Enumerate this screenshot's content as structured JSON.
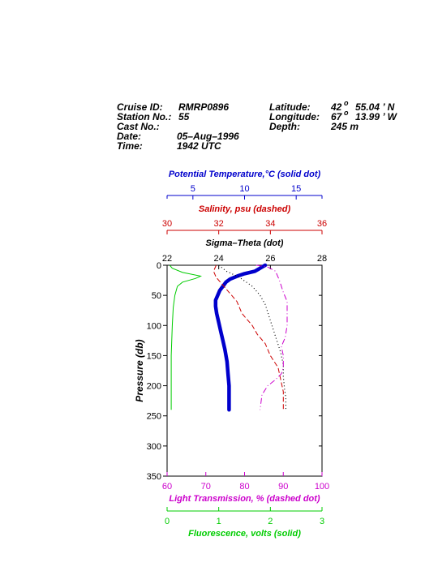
{
  "header": {
    "cruise_label": "Cruise ID:",
    "cruise_value": "RMRP0896",
    "station_label": "Station No.:",
    "station_value": "55",
    "cast_label": "Cast No.:",
    "cast_value": "",
    "date_label": "Date:",
    "date_value": "05–Aug–1996",
    "time_label": "Time:",
    "time_value": "1942 UTC",
    "lat_label": "Latitude:",
    "lat_deg": "42",
    "lat_min": "55.04 ’ N",
    "lon_label": "Longitude:",
    "lon_deg": "67",
    "lon_min": "13.99 ’ W",
    "depth_label": "Depth:",
    "depth_value": "245 m",
    "degree_mark": "o"
  },
  "colors": {
    "temperature": "#0000cc",
    "salinity": "#cc0000",
    "sigma": "#000000",
    "transmission": "#cc00cc",
    "fluorescence": "#00cc00"
  },
  "chart_data": {
    "type": "line",
    "y_axis": {
      "label": "Pressure (db)",
      "range": [
        0,
        350
      ],
      "reversed": true,
      "ticks": [
        "0",
        "50",
        "100",
        "150",
        "200",
        "250",
        "300",
        "350"
      ]
    },
    "axes": [
      {
        "id": "temperature",
        "label": "Potential Temperature,°C (solid dot)",
        "range": [
          2.5,
          17.5
        ],
        "ticks": [
          5,
          10,
          15
        ],
        "tick_labels": [
          "5",
          "10",
          "15"
        ],
        "position": "top"
      },
      {
        "id": "salinity",
        "label": "Salinity, psu  (dashed)",
        "range": [
          30,
          36
        ],
        "ticks": [
          30,
          32,
          34,
          36
        ],
        "tick_labels": [
          "30",
          "32",
          "34",
          "36"
        ],
        "position": "top"
      },
      {
        "id": "sigma",
        "label": "Sigma–Theta (dot)",
        "range": [
          22,
          28
        ],
        "ticks": [
          22,
          24,
          26,
          28
        ],
        "tick_labels": [
          "22",
          "24",
          "26",
          "28"
        ],
        "position": "top"
      },
      {
        "id": "transmission",
        "label": "Light Transmission, % (dashed dot)",
        "range": [
          60,
          100
        ],
        "ticks": [
          60,
          70,
          80,
          90,
          100
        ],
        "tick_labels": [
          "60",
          "70",
          "80",
          "90",
          "100"
        ],
        "position": "bottom"
      },
      {
        "id": "fluorescence",
        "label": "Fluorescence, volts (solid)",
        "range": [
          0,
          3
        ],
        "ticks": [
          0,
          1,
          2,
          3
        ],
        "tick_labels": [
          "0",
          "1",
          "2",
          "3"
        ],
        "position": "bottom"
      }
    ],
    "series": [
      {
        "id": "temperature",
        "style": "solid-dot",
        "points": [
          [
            12.0,
            0
          ],
          [
            11.7,
            3
          ],
          [
            11.4,
            6
          ],
          [
            11.0,
            10
          ],
          [
            10.0,
            14
          ],
          [
            9.3,
            18
          ],
          [
            8.6,
            23
          ],
          [
            8.2,
            28
          ],
          [
            7.9,
            35
          ],
          [
            7.6,
            42
          ],
          [
            7.4,
            50
          ],
          [
            7.2,
            58
          ],
          [
            7.2,
            68
          ],
          [
            7.3,
            80
          ],
          [
            7.5,
            95
          ],
          [
            7.7,
            110
          ],
          [
            7.9,
            125
          ],
          [
            8.1,
            140
          ],
          [
            8.3,
            160
          ],
          [
            8.4,
            180
          ],
          [
            8.5,
            200
          ],
          [
            8.5,
            220
          ],
          [
            8.5,
            240
          ]
        ]
      },
      {
        "id": "salinity",
        "style": "dashed",
        "points": [
          [
            31.9,
            0
          ],
          [
            31.8,
            10
          ],
          [
            31.9,
            20
          ],
          [
            32.1,
            30
          ],
          [
            32.4,
            45
          ],
          [
            32.7,
            60
          ],
          [
            32.9,
            80
          ],
          [
            33.3,
            100
          ],
          [
            33.5,
            115
          ],
          [
            33.8,
            130
          ],
          [
            34.0,
            150
          ],
          [
            34.3,
            170
          ],
          [
            34.4,
            190
          ],
          [
            34.5,
            210
          ],
          [
            34.5,
            240
          ]
        ]
      },
      {
        "id": "sigma",
        "style": "dot",
        "points": [
          [
            24.0,
            0
          ],
          [
            24.3,
            10
          ],
          [
            24.8,
            20
          ],
          [
            25.3,
            35
          ],
          [
            25.6,
            50
          ],
          [
            25.8,
            65
          ],
          [
            25.95,
            85
          ],
          [
            26.1,
            105
          ],
          [
            26.25,
            125
          ],
          [
            26.4,
            145
          ],
          [
            26.5,
            165
          ],
          [
            26.5,
            185
          ],
          [
            26.55,
            205
          ],
          [
            26.6,
            220
          ],
          [
            26.6,
            240
          ]
        ]
      },
      {
        "id": "transmission",
        "style": "dashed-dot",
        "points": [
          [
            83,
            0
          ],
          [
            86,
            3
          ],
          [
            88,
            10
          ],
          [
            89,
            25
          ],
          [
            90,
            45
          ],
          [
            91,
            60
          ],
          [
            91,
            80
          ],
          [
            91,
            100
          ],
          [
            90.5,
            120
          ],
          [
            89.5,
            135
          ],
          [
            90,
            150
          ],
          [
            90,
            170
          ],
          [
            89.5,
            180
          ],
          [
            88,
            190
          ],
          [
            86,
            200
          ],
          [
            84.5,
            215
          ],
          [
            84,
            240
          ]
        ]
      },
      {
        "id": "fluorescence",
        "style": "solid",
        "points": [
          [
            0.05,
            0
          ],
          [
            0.1,
            5
          ],
          [
            0.3,
            12
          ],
          [
            0.65,
            18
          ],
          [
            0.55,
            22
          ],
          [
            0.3,
            28
          ],
          [
            0.2,
            35
          ],
          [
            0.15,
            50
          ],
          [
            0.12,
            70
          ],
          [
            0.1,
            100
          ],
          [
            0.08,
            150
          ],
          [
            0.08,
            200
          ],
          [
            0.08,
            240
          ]
        ]
      }
    ]
  }
}
